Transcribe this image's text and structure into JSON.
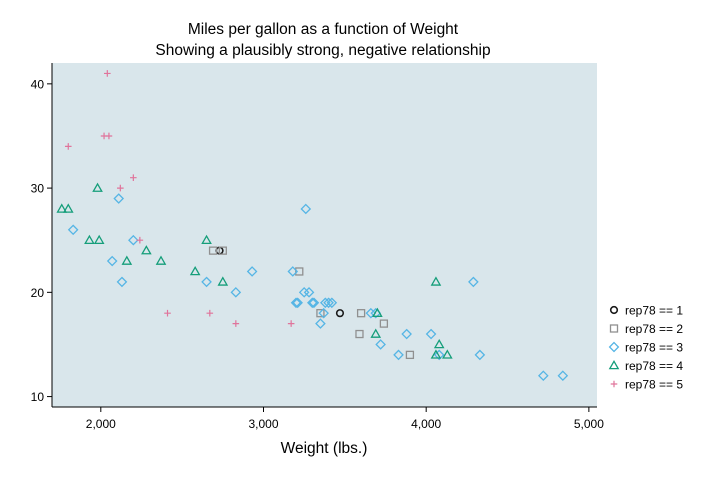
{
  "chart_data": {
    "type": "scatter",
    "title": "Miles per gallon as a function of Weight",
    "subtitle": "Showing a plausibly strong, negative relationship",
    "xlabel": "Weight (lbs.)",
    "ylabel": "",
    "xlim": [
      1700,
      5050
    ],
    "ylim": [
      9,
      42
    ],
    "xticks": [
      2000,
      3000,
      4000,
      5000
    ],
    "xtick_labels": [
      "2,000",
      "3,000",
      "4,000",
      "5,000"
    ],
    "yticks": [
      10,
      20,
      30,
      40
    ],
    "ytick_labels": [
      "10",
      "20",
      "30",
      "40"
    ],
    "grid": false,
    "legend_position": "right",
    "plot_background": "#d9e6eb",
    "series": [
      {
        "name": "rep78 == 1",
        "marker": "circle",
        "color": "#1a1a1a",
        "points": [
          [
            2730,
            24
          ],
          [
            3470,
            18
          ]
        ]
      },
      {
        "name": "rep78 == 2",
        "marker": "square",
        "color": "#909090",
        "points": [
          [
            2690,
            24
          ],
          [
            2750,
            24
          ],
          [
            3220,
            22
          ],
          [
            3350,
            18
          ],
          [
            3600,
            18
          ],
          [
            3590,
            16
          ],
          [
            3740,
            17
          ],
          [
            3900,
            14
          ]
        ]
      },
      {
        "name": "rep78 == 3",
        "marker": "diamond",
        "color": "#55b5e5",
        "points": [
          [
            1830,
            26
          ],
          [
            2070,
            23
          ],
          [
            2110,
            29
          ],
          [
            2130,
            21
          ],
          [
            2200,
            25
          ],
          [
            2650,
            21
          ],
          [
            2830,
            20
          ],
          [
            2930,
            22
          ],
          [
            3180,
            22
          ],
          [
            3200,
            19
          ],
          [
            3210,
            19
          ],
          [
            3250,
            20
          ],
          [
            3260,
            28
          ],
          [
            3280,
            20
          ],
          [
            3300,
            19
          ],
          [
            3310,
            19
          ],
          [
            3350,
            17
          ],
          [
            3370,
            18
          ],
          [
            3380,
            19
          ],
          [
            3400,
            19
          ],
          [
            3420,
            19
          ],
          [
            3660,
            18
          ],
          [
            3690,
            18
          ],
          [
            3720,
            15
          ],
          [
            3830,
            14
          ],
          [
            3880,
            16
          ],
          [
            4030,
            16
          ],
          [
            4080,
            14
          ],
          [
            4290,
            21
          ],
          [
            4330,
            14
          ],
          [
            4720,
            12
          ],
          [
            4840,
            12
          ]
        ]
      },
      {
        "name": "rep78 == 4",
        "marker": "triangle",
        "color": "#159e7a",
        "points": [
          [
            1760,
            28
          ],
          [
            1800,
            28
          ],
          [
            1930,
            25
          ],
          [
            1980,
            30
          ],
          [
            1990,
            25
          ],
          [
            2160,
            23
          ],
          [
            2280,
            24
          ],
          [
            2370,
            23
          ],
          [
            2580,
            22
          ],
          [
            2650,
            25
          ],
          [
            2750,
            21
          ],
          [
            3690,
            16
          ],
          [
            3700,
            18
          ],
          [
            4060,
            21
          ],
          [
            4060,
            14
          ],
          [
            4080,
            15
          ],
          [
            4130,
            14
          ]
        ]
      },
      {
        "name": "rep78 == 5",
        "marker": "plus",
        "color": "#e0749b",
        "points": [
          [
            1800,
            34
          ],
          [
            2020,
            35
          ],
          [
            2040,
            41
          ],
          [
            2050,
            35
          ],
          [
            2120,
            30
          ],
          [
            2200,
            31
          ],
          [
            2240,
            25
          ],
          [
            2410,
            18
          ],
          [
            2670,
            18
          ],
          [
            2830,
            17
          ],
          [
            3170,
            17
          ]
        ]
      }
    ]
  }
}
